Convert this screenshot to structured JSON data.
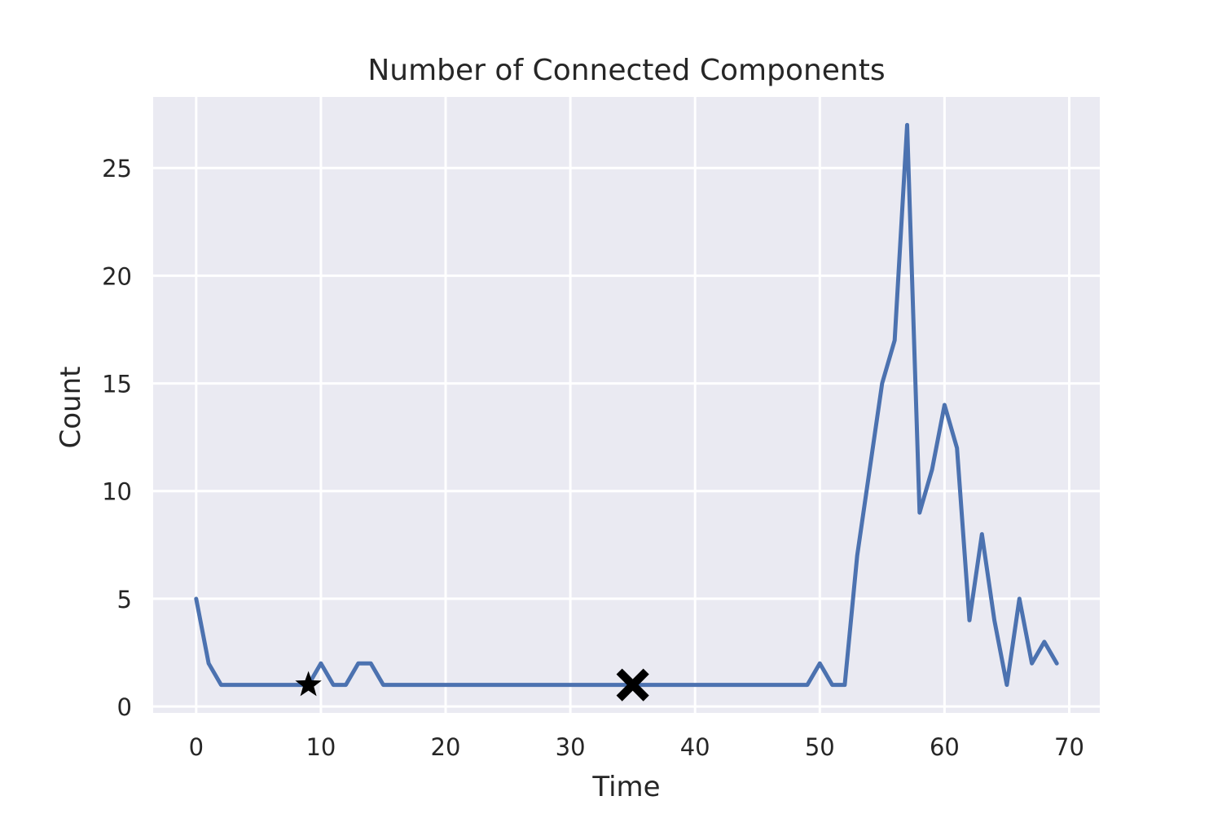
{
  "chart_data": {
    "type": "line",
    "title": "Number of Connected Components",
    "xlabel": "Time",
    "ylabel": "Count",
    "xlim": [
      -3.45,
      72.45
    ],
    "ylim": [
      -0.3,
      28.3
    ],
    "xticks": [
      0,
      10,
      20,
      30,
      40,
      50,
      60,
      70
    ],
    "yticks": [
      0,
      5,
      10,
      15,
      20,
      25
    ],
    "grid": true,
    "background_color": "#eaeaf2",
    "grid_color": "#ffffff",
    "series": [
      {
        "color": "#4c72b0",
        "x": [
          0,
          1,
          2,
          3,
          4,
          5,
          6,
          7,
          8,
          9,
          10,
          11,
          12,
          13,
          14,
          15,
          16,
          17,
          18,
          19,
          20,
          21,
          22,
          23,
          24,
          25,
          26,
          27,
          28,
          29,
          30,
          31,
          32,
          33,
          34,
          35,
          36,
          37,
          38,
          39,
          40,
          41,
          42,
          43,
          44,
          45,
          46,
          47,
          48,
          49,
          50,
          51,
          52,
          53,
          54,
          55,
          56,
          57,
          58,
          59,
          60,
          61,
          62,
          63,
          64,
          65,
          66,
          67,
          68,
          69
        ],
        "values": [
          5,
          2,
          1,
          1,
          1,
          1,
          1,
          1,
          1,
          1,
          2,
          1,
          1,
          2,
          2,
          1,
          1,
          1,
          1,
          1,
          1,
          1,
          1,
          1,
          1,
          1,
          1,
          1,
          1,
          1,
          1,
          1,
          1,
          1,
          1,
          1,
          1,
          1,
          1,
          1,
          1,
          1,
          1,
          1,
          1,
          1,
          1,
          1,
          1,
          1,
          2,
          1,
          1,
          7,
          11,
          15,
          17,
          27,
          9,
          11,
          14,
          12,
          4,
          8,
          4,
          1,
          5,
          2,
          3,
          2
        ]
      }
    ],
    "markers": [
      {
        "symbol": "star",
        "x": 9,
        "y": 1,
        "color": "#000000"
      },
      {
        "symbol": "x-filled",
        "x": 35,
        "y": 1,
        "color": "#000000"
      }
    ]
  }
}
